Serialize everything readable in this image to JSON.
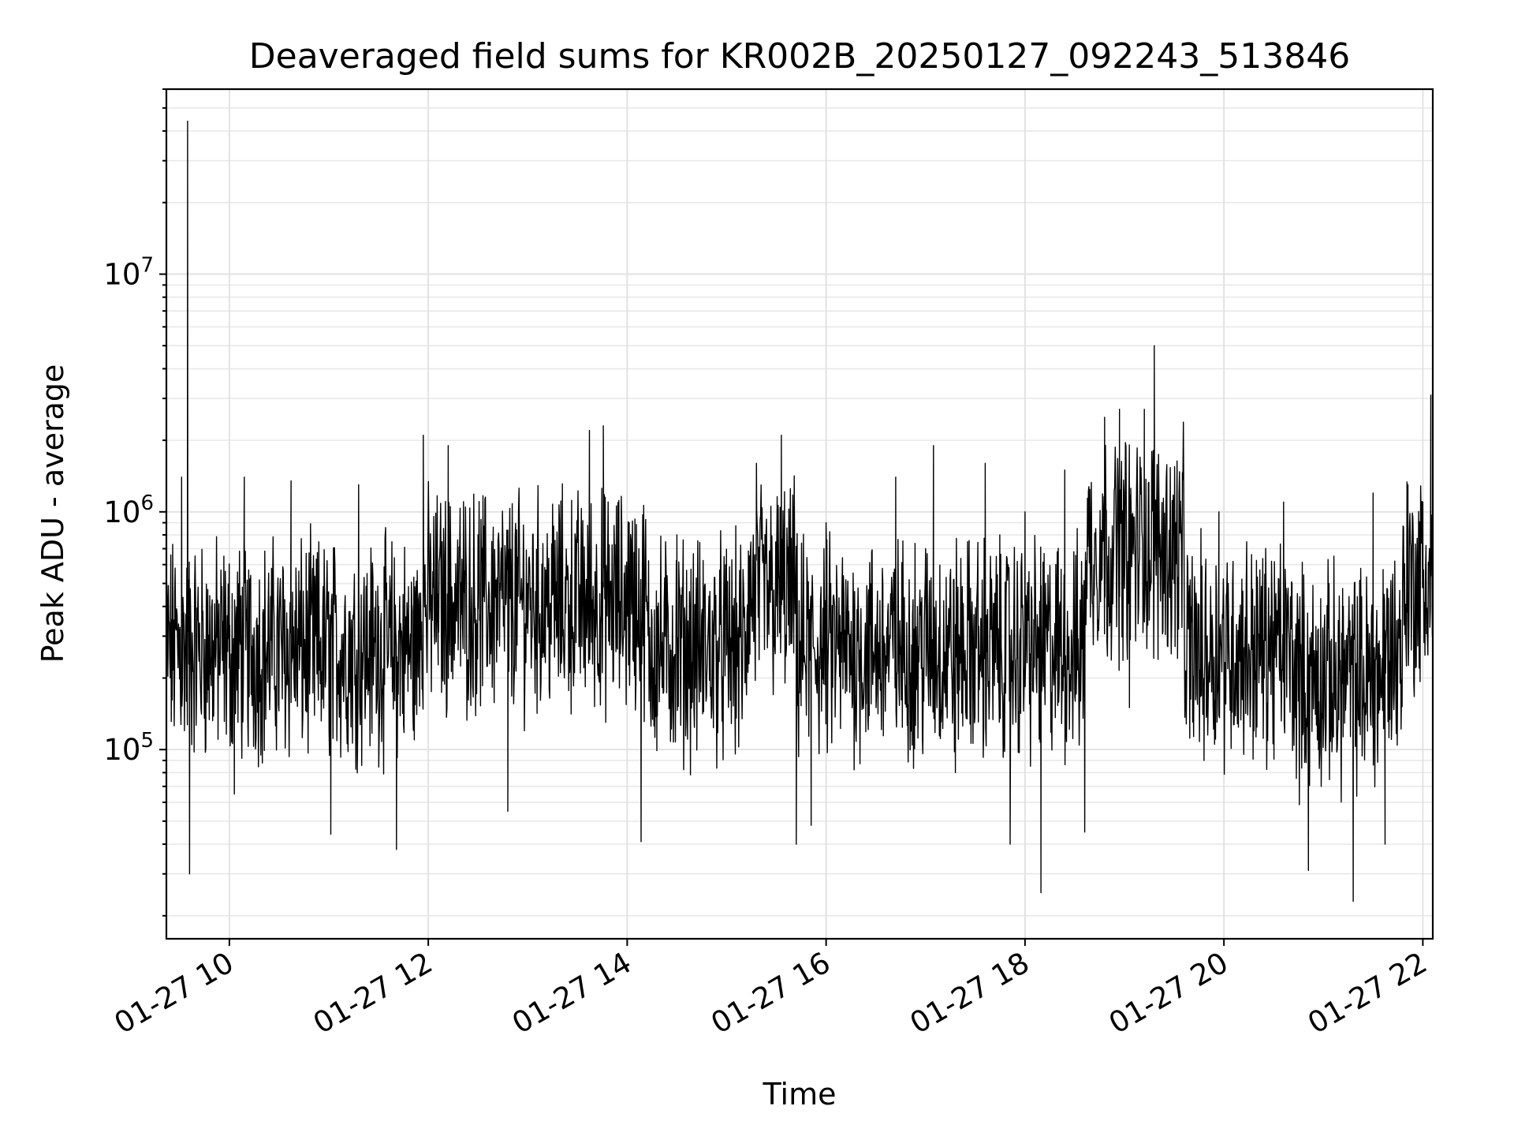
{
  "chart_data": {
    "type": "line",
    "title": "Deaveraged field sums for KR002B_20250127_092243_513846",
    "xlabel": "Time",
    "ylabel": "Peak ADU - average",
    "yscale": "log",
    "grid": true,
    "grid_minor": true,
    "line_color": "#000000",
    "xlim": [
      "01-27 09:22",
      "01-27 22:06"
    ],
    "ylim": [
      16000,
      60000000
    ],
    "x_tick_labels": [
      "01-27 10",
      "01-27 12",
      "01-27 14",
      "01-27 16",
      "01-27 18",
      "01-27 20",
      "01-27 22"
    ],
    "x_tick_hours": [
      10,
      12,
      14,
      16,
      18,
      20,
      22
    ],
    "y_ticks": [
      {
        "value": 100000,
        "base": "10",
        "exp": "5"
      },
      {
        "value": 1000000,
        "base": "10",
        "exp": "6"
      },
      {
        "value": 10000000,
        "base": "10",
        "exp": "7"
      }
    ],
    "series": [
      {
        "points": [
          [
            9.37,
            300000
          ],
          [
            9.45,
            450000
          ],
          [
            9.52,
            1400000
          ],
          [
            9.58,
            44000000
          ],
          [
            9.6,
            30000
          ],
          [
            9.8,
            280000
          ],
          [
            10.0,
            220000
          ],
          [
            10.05,
            65000
          ],
          [
            10.15,
            1400000
          ],
          [
            10.4,
            250000
          ],
          [
            10.62,
            1350000
          ],
          [
            11.0,
            260000
          ],
          [
            11.02,
            44000
          ],
          [
            11.3,
            1300000
          ],
          [
            11.5,
            400000
          ],
          [
            11.68,
            38000
          ],
          [
            11.95,
            2100000
          ],
          [
            12.1,
            450000
          ],
          [
            12.2,
            1900000
          ],
          [
            12.5,
            800000
          ],
          [
            12.8,
            55000
          ],
          [
            13.0,
            500000
          ],
          [
            13.3,
            300000
          ],
          [
            13.62,
            2200000
          ],
          [
            13.76,
            2300000
          ],
          [
            14.02,
            900000
          ],
          [
            14.14,
            41000
          ],
          [
            14.3,
            400000
          ],
          [
            14.5,
            800000
          ],
          [
            14.8,
            200000
          ],
          [
            15.0,
            250000
          ],
          [
            15.3,
            1600000
          ],
          [
            15.55,
            2100000
          ],
          [
            15.7,
            40000
          ],
          [
            15.85,
            48000
          ],
          [
            16.0,
            900000
          ],
          [
            16.4,
            260000
          ],
          [
            16.7,
            1400000
          ],
          [
            17.0,
            700000
          ],
          [
            17.08,
            1900000
          ],
          [
            17.3,
            80000
          ],
          [
            17.6,
            1600000
          ],
          [
            17.85,
            40000
          ],
          [
            18.0,
            1000000
          ],
          [
            18.16,
            25000
          ],
          [
            18.4,
            1500000
          ],
          [
            18.6,
            45000
          ],
          [
            18.8,
            2500000
          ],
          [
            18.95,
            2700000
          ],
          [
            19.05,
            150000
          ],
          [
            19.2,
            2700000
          ],
          [
            19.3,
            5000000
          ],
          [
            19.5,
            500000
          ],
          [
            19.8,
            90000
          ],
          [
            19.95,
            1000000
          ],
          [
            20.3,
            250000
          ],
          [
            20.6,
            1100000
          ],
          [
            20.85,
            31000
          ],
          [
            20.95,
            100000
          ],
          [
            21.2,
            400000
          ],
          [
            21.3,
            23000
          ],
          [
            21.5,
            1200000
          ],
          [
            21.62,
            40000
          ],
          [
            21.85,
            1300000
          ],
          [
            22.0,
            1100000
          ],
          [
            22.08,
            3100000
          ],
          [
            22.1,
            800000
          ]
        ]
      }
    ]
  }
}
